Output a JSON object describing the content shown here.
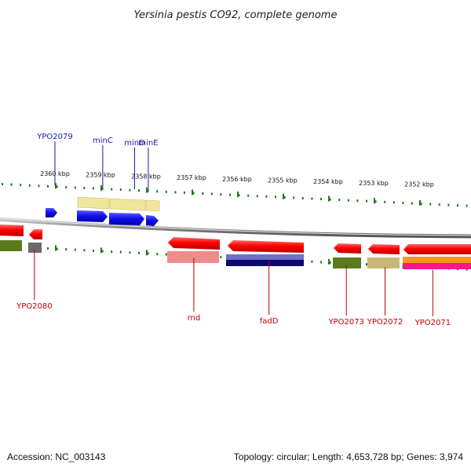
{
  "title": "Yersinia pestis CO92, complete genome",
  "footer": {
    "accession": "Accession: NC_003143",
    "summary": "Topology: circular; Length: 4,653,728 bp; Genes: 3,974"
  },
  "scale_ticks": [
    {
      "label": "2360 kbp",
      "kbp": 2360
    },
    {
      "label": "2359 kbp",
      "kbp": 2359
    },
    {
      "label": "2358 kbp",
      "kbp": 2358
    },
    {
      "label": "2357 kbp",
      "kbp": 2357
    },
    {
      "label": "2356 kbp",
      "kbp": 2356
    },
    {
      "label": "2355 kbp",
      "kbp": 2355
    },
    {
      "label": "2354 kbp",
      "kbp": 2354
    },
    {
      "label": "2353 kbp",
      "kbp": 2353
    },
    {
      "label": "2352 kbp",
      "kbp": 2352
    }
  ],
  "forward_labels": [
    {
      "text": "YPO2079",
      "kbp": 2360.0
    },
    {
      "text": "minC",
      "kbp": 2358.95
    },
    {
      "text": "minD",
      "kbp": 2358.25
    },
    {
      "text": "minE",
      "kbp": 2357.95
    }
  ],
  "reverse_labels": [
    {
      "text": "YPO2080",
      "kbp": 2360.45
    },
    {
      "text": "rnd",
      "kbp": 2356.95
    },
    {
      "text": "fadD",
      "kbp": 2355.3
    },
    {
      "text": "YPO2073",
      "kbp": 2353.6
    },
    {
      "text": "YPO2072",
      "kbp": 2352.75
    },
    {
      "text": "YPO2071",
      "kbp": 2351.7
    }
  ],
  "colors": {
    "forward_gene": "#1010e0",
    "reverse_gene": "#ee0000",
    "backbone": "#808080",
    "ticks": "#1a7a1a",
    "label_fwd": "#1a1aa8",
    "label_rev": "#c00000"
  }
}
